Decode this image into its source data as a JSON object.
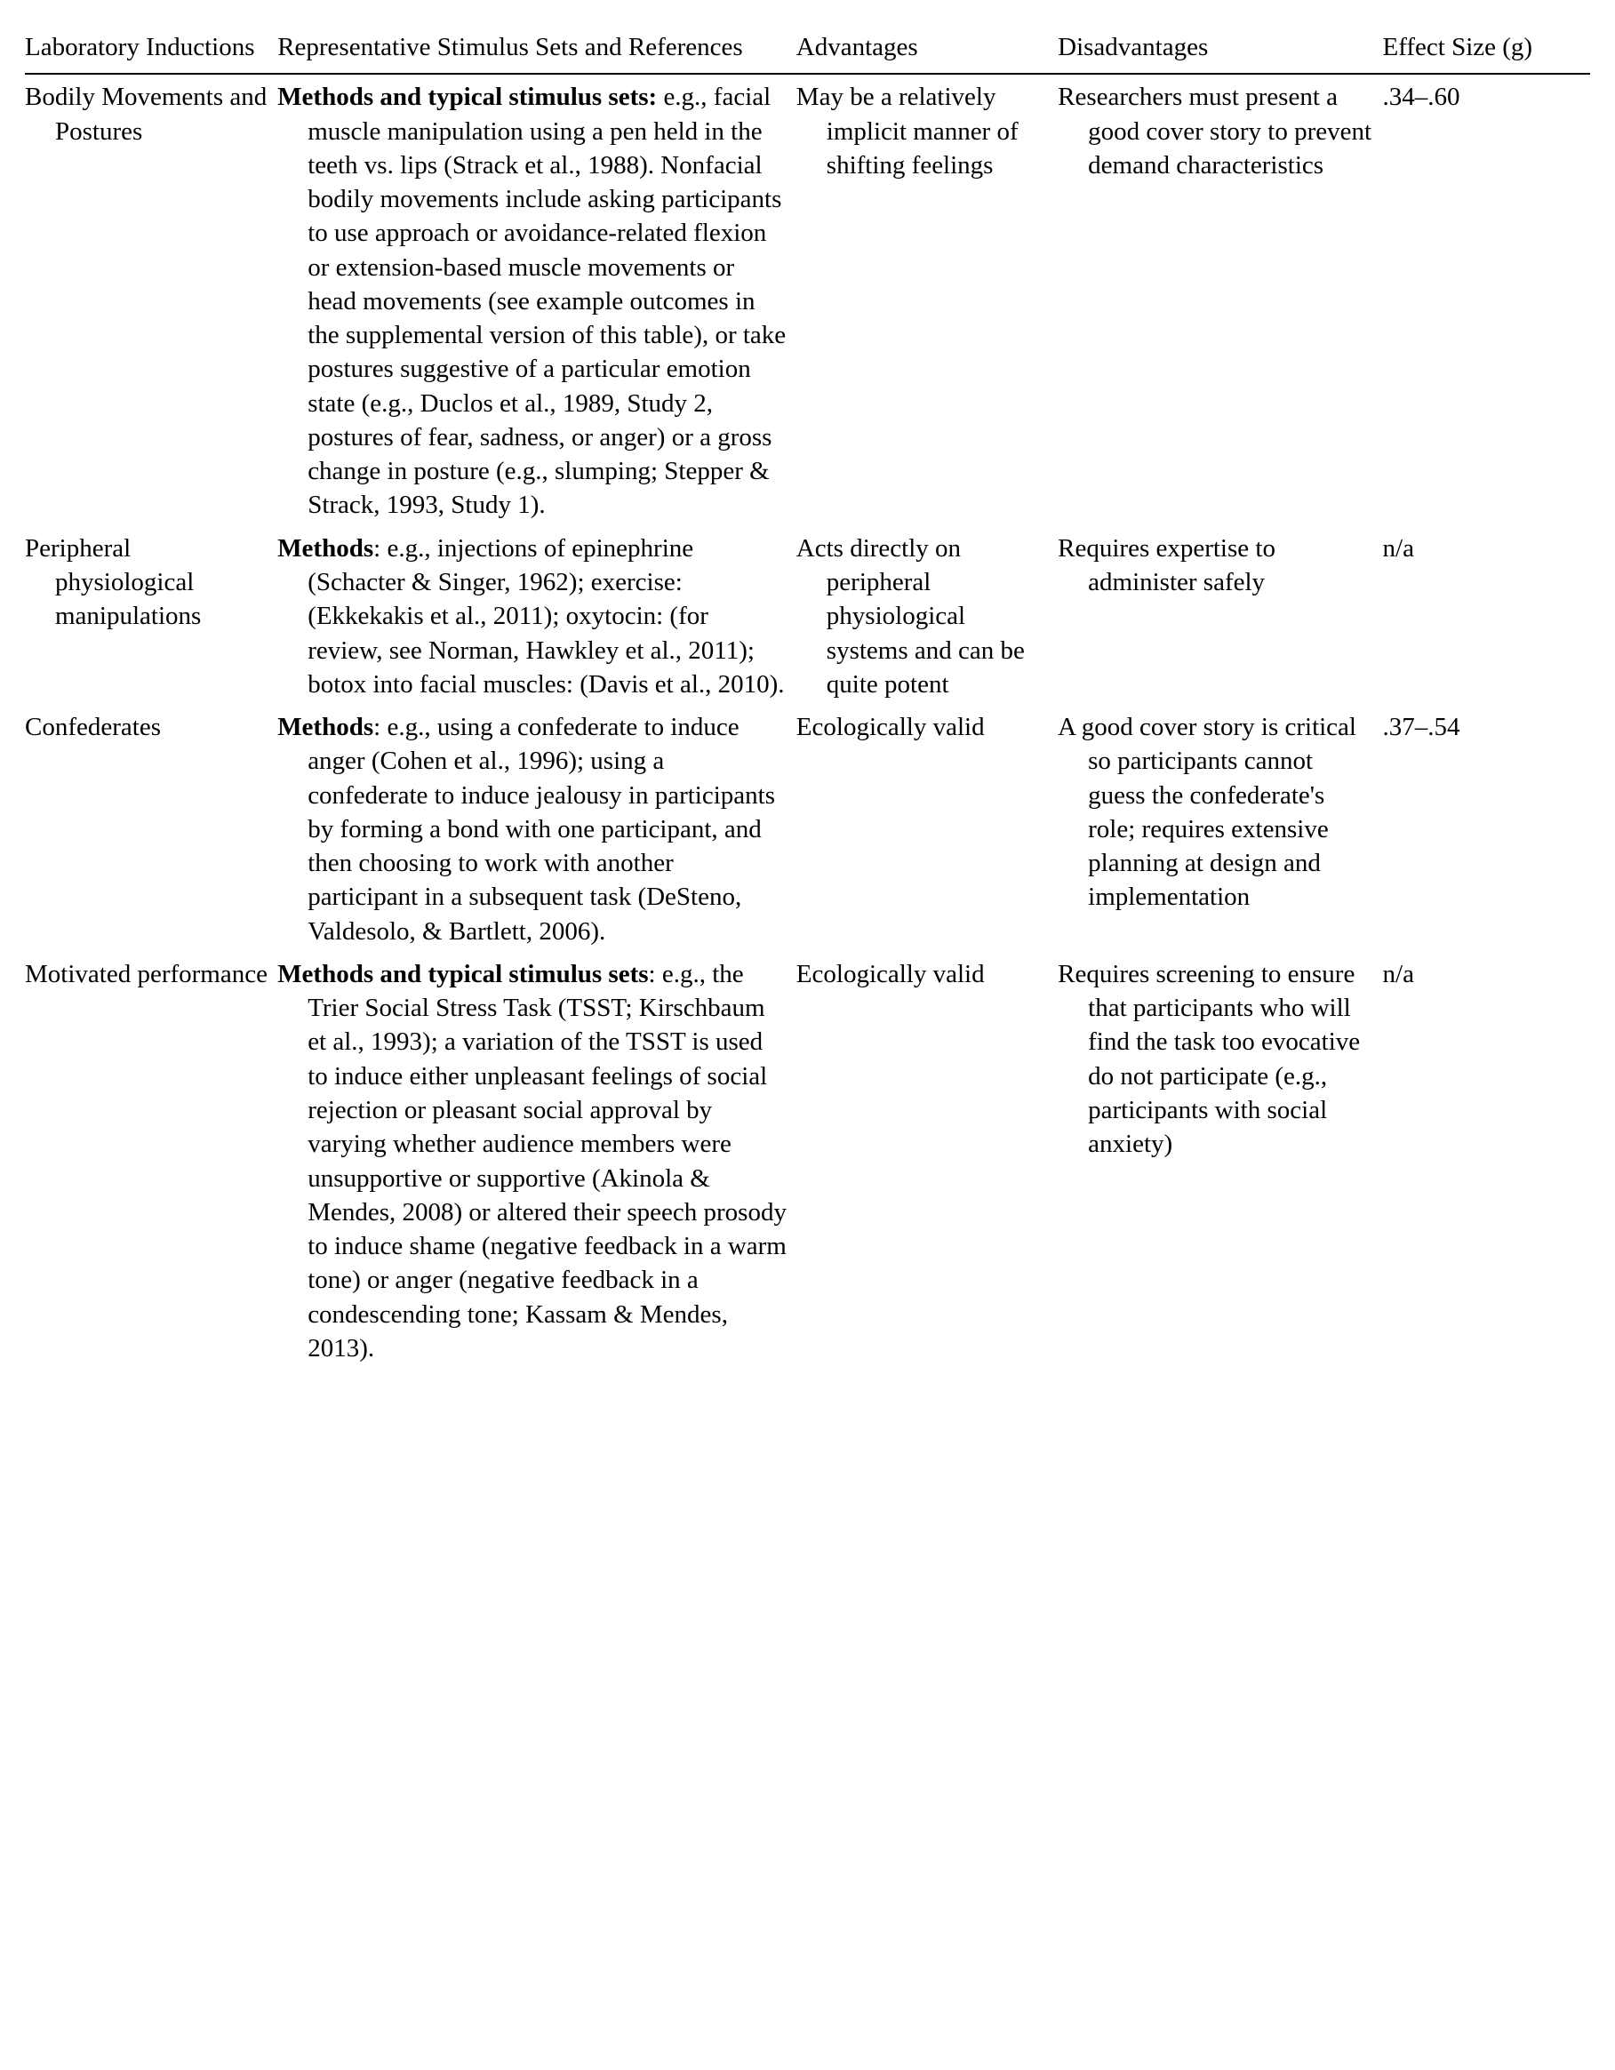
{
  "columns": {
    "induction": "Laboratory Inductions",
    "methods": "Representative Stimulus Sets and References",
    "advantages": "Advantages",
    "disadvantages": "Disadvantages",
    "effect": "Effect Size (g)"
  },
  "rows": [
    {
      "induction": "Bodily Movements and Postures",
      "methods_lead": "Methods and typical stimulus sets:",
      "methods_rest": " e.g., facial muscle manipulation using a pen held in the teeth vs. lips (Strack et al., 1988). Nonfacial bodily movements include asking participants to use approach or avoidance-related flexion or extension-based muscle movements or head movements (see example outcomes in the supplemental version of this table), or take postures suggestive of a particular emotion state (e.g., Duclos et al., 1989, Study 2, postures of fear, sadness, or anger) or a gross change in posture (e.g., slumping; Stepper & Strack, 1993, Study 1).",
      "advantages": "May be a relatively implicit manner of shifting feelings",
      "disadvantages": "Researchers must present a good cover story to prevent demand characteristics",
      "effect": ".34–.60"
    },
    {
      "induction": "Peripheral physiological manipulations",
      "methods_lead": "Methods",
      "methods_rest": ": e.g., injections of epinephrine (Schacter & Singer, 1962); exercise: (Ekkekakis et al., 2011); oxytocin: (for review, see Norman, Hawkley et al., 2011); botox into facial muscles: (Davis et al., 2010).",
      "advantages": "Acts directly on peripheral physiological systems and can be quite potent",
      "disadvantages": "Requires expertise to administer safely",
      "effect": "n/a"
    },
    {
      "induction": "Confederates",
      "methods_lead": "Methods",
      "methods_rest": ": e.g., using a confederate to induce anger (Cohen et al., 1996); using a confederate to induce jealousy in participants by forming a bond with one participant, and then choosing to work with another participant in a subsequent task (DeSteno, Valdesolo, & Bartlett, 2006).",
      "advantages": "Ecologically valid",
      "disadvantages": "A good cover story is critical so participants cannot guess the confederate's role; requires extensive planning at design and implementation",
      "effect": ".37–.54"
    },
    {
      "induction": "Motivated performance",
      "methods_lead": "Methods and typical stimulus sets",
      "methods_rest": ": e.g., the Trier Social Stress Task (TSST; Kirschbaum et al., 1993); a variation of the TSST is used to induce either unpleasant feelings of social rejection or pleasant social approval by varying whether audience members were unsupportive or supportive (Akinola & Mendes, 2008) or altered their speech prosody to induce shame (negative feedback in a warm tone) or anger (negative feedback in a condescending tone; Kassam & Mendes, 2013).",
      "advantages": "Ecologically valid",
      "disadvantages": "Requires screening to ensure that participants who will find the task too evocative do not participate (e.g., participants with social anxiety)",
      "effect": "n/a"
    }
  ]
}
